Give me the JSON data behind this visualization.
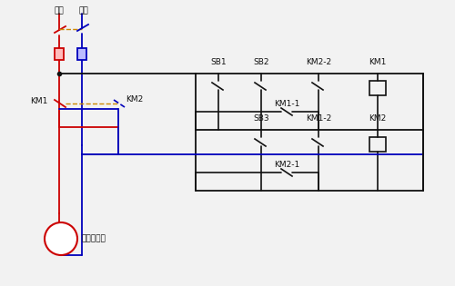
{
  "bg_color": "#f2f2f2",
  "red": "#cc0000",
  "blue": "#0000bb",
  "dark": "#111111",
  "orange": "#cc8800",
  "labels": {
    "zhengji": "正极",
    "fuji": "负极",
    "km1_left": "KM1",
    "km2_left": "KM2",
    "motor": "直流电动机",
    "sb1": "SB1",
    "sb2": "SB2",
    "sb3": "SB3",
    "km1": "KM1",
    "km2": "KM2",
    "km1_1": "KM1-1",
    "km2_2": "KM2-2",
    "km1_2": "KM1-2",
    "km2_1": "KM2-1"
  },
  "font_size": 6.5,
  "figsize": [
    5.0,
    3.15
  ],
  "dpi": 100
}
